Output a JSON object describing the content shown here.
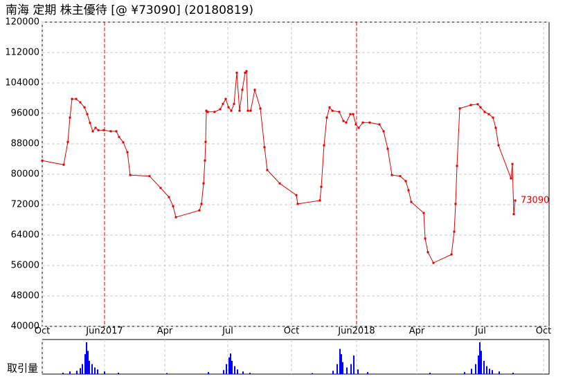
{
  "chart_data": [
    {
      "type": "line",
      "title": "南海 定期 株主優待  [@ ¥73090] (20180819)",
      "xlim": [
        0,
        732
      ],
      "xticks": [
        {
          "value": 0,
          "label": "Oct"
        },
        {
          "value": 90,
          "label": "Jun2017"
        },
        {
          "value": 177,
          "label": "Apr"
        },
        {
          "value": 268,
          "label": "Jul"
        },
        {
          "value": 360,
          "label": "Oct"
        },
        {
          "value": 454,
          "label": "Jun2018"
        },
        {
          "value": 541,
          "label": "Apr"
        },
        {
          "value": 633,
          "label": "Jul"
        },
        {
          "value": 724,
          "label": "Oct"
        }
      ],
      "vlines": [
        90,
        454
      ],
      "ylim": [
        40000,
        120000
      ],
      "yticks": [
        40000,
        48000,
        56000,
        64000,
        72000,
        80000,
        88000,
        96000,
        104000,
        112000,
        120000
      ],
      "grid": true,
      "series": [
        {
          "color": "#e00000",
          "x": [
            0,
            31,
            37,
            40,
            43,
            49,
            55,
            61,
            65,
            69,
            73,
            77,
            81,
            89,
            99,
            107,
            111,
            117,
            123,
            127,
            155,
            171,
            183,
            189,
            193,
            227,
            230,
            233,
            235,
            236,
            237,
            239,
            249,
            257,
            261,
            265,
            269,
            273,
            277,
            281,
            285,
            289,
            293,
            295,
            297,
            301,
            307,
            315,
            321,
            325,
            343,
            367,
            369,
            401,
            403,
            407,
            411,
            415,
            419,
            429,
            435,
            439,
            445,
            449,
            453,
            457,
            463,
            473,
            487,
            493,
            499,
            505,
            517,
            525,
            529,
            533,
            551,
            553,
            557,
            565,
            591,
            595,
            597,
            599,
            603,
            619,
            629,
            633,
            639,
            645,
            651,
            655,
            659,
            677,
            679,
            681,
            683
          ],
          "values": [
            83600,
            82500,
            88500,
            94900,
            99800,
            99800,
            98900,
            97600,
            95800,
            93500,
            91300,
            92200,
            91600,
            91600,
            91300,
            91300,
            89800,
            88400,
            85800,
            79800,
            79500,
            76400,
            74000,
            71600,
            68700,
            70500,
            72200,
            77600,
            83600,
            88500,
            96700,
            96400,
            96400,
            97100,
            98500,
            99800,
            97600,
            96700,
            98500,
            106700,
            96700,
            102200,
            106700,
            107100,
            96700,
            96700,
            102200,
            97300,
            87100,
            81100,
            77600,
            74500,
            72200,
            73100,
            76700,
            87600,
            94900,
            97600,
            96700,
            96400,
            94000,
            93600,
            95800,
            95800,
            93100,
            92200,
            93600,
            93600,
            93100,
            91300,
            86700,
            79800,
            79500,
            78200,
            75800,
            72700,
            69800,
            63100,
            59500,
            56700,
            58900,
            64900,
            72200,
            82200,
            97300,
            98200,
            98400,
            97600,
            96400,
            95800,
            94900,
            92200,
            87600,
            78900,
            82700,
            69500,
            73090
          ]
        }
      ]
    },
    {
      "type": "bar",
      "ylabel": "取引量",
      "ylim": [
        0,
        100
      ],
      "color": "#0000ff",
      "x": [
        30,
        40,
        50,
        55,
        58,
        62,
        64,
        66,
        68,
        72,
        76,
        80,
        90,
        110,
        180,
        240,
        262,
        266,
        270,
        272,
        274,
        278,
        282,
        290,
        300,
        390,
        420,
        426,
        430,
        432,
        434,
        440,
        446,
        450,
        456,
        470,
        560,
        610,
        620,
        626,
        630,
        632,
        634,
        638,
        642,
        646,
        650,
        660,
        680
      ],
      "values": [
        4,
        8,
        10,
        18,
        30,
        60,
        96,
        70,
        40,
        30,
        20,
        14,
        8,
        4,
        3,
        6,
        12,
        30,
        50,
        62,
        40,
        24,
        14,
        8,
        4,
        3,
        10,
        30,
        76,
        60,
        36,
        20,
        30,
        56,
        14,
        6,
        4,
        6,
        16,
        30,
        56,
        96,
        70,
        40,
        24,
        16,
        12,
        8,
        4
      ]
    }
  ]
}
